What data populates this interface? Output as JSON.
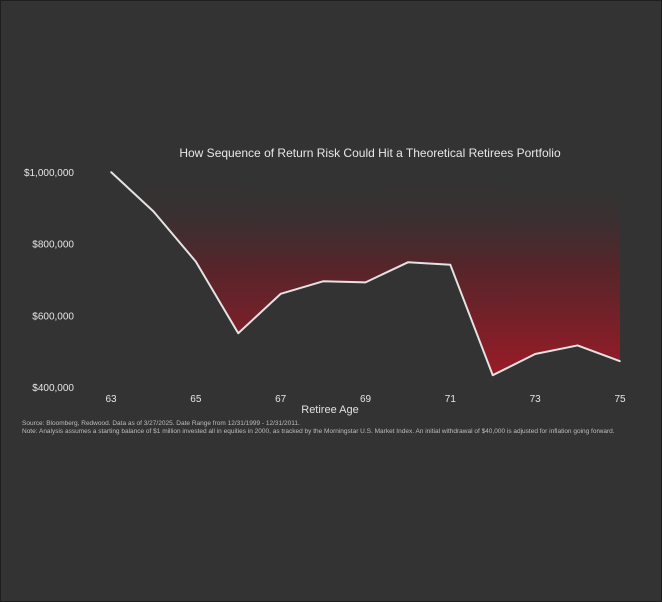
{
  "chart_data": {
    "type": "area",
    "title": "How Sequence of Return Risk Could Hit a Theoretical Retirees Portfolio",
    "xlabel": "Retiree Age",
    "ylabel": "",
    "x": [
      63,
      64,
      65,
      66,
      67,
      68,
      69,
      70,
      71,
      72,
      73,
      74,
      75
    ],
    "values": [
      1000000,
      890000,
      750000,
      550000,
      660000,
      695000,
      692000,
      748000,
      741000,
      433000,
      492000,
      516000,
      472000
    ],
    "xticks": [
      63,
      65,
      67,
      69,
      71,
      73,
      75
    ],
    "yticks": [
      {
        "value": 400000,
        "label": "$400,000"
      },
      {
        "value": 600000,
        "label": "$600,000"
      },
      {
        "value": 800000,
        "label": "$800,000"
      },
      {
        "value": 1000000,
        "label": "$1,000,000"
      }
    ],
    "xlim": [
      63,
      75
    ],
    "ylim": [
      400000,
      1000000
    ],
    "grid": false,
    "colors": {
      "background": "#333333",
      "line": "#e3e3e3",
      "fill_dark": "#2f2f2f",
      "fill_red": "#9b1b27",
      "text": "#e6e6e6"
    }
  },
  "source_note": "Source: Bloomberg, Redwood. Data as of 3/27/2025. Date Range from 12/31/1999 - 12/31/2011.",
  "analysis_note": "Note: Analysis assumes a starting balance of $1 million invested all in equities in 2000, as tracked by the Morningstar U.S. Market Index. An initial withdrawal of $40,000 is adjusted for inflation going forward."
}
